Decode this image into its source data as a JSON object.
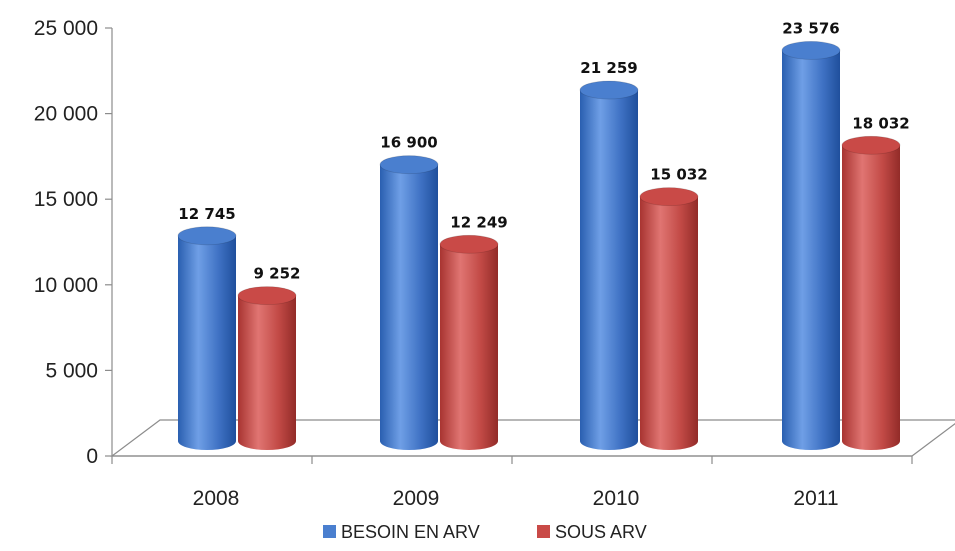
{
  "chart_data": {
    "type": "bar",
    "categories": [
      "2008",
      "2009",
      "2010",
      "2011"
    ],
    "series": [
      {
        "name": "BESOIN EN ARV",
        "values": [
          12745,
          16900,
          21259,
          23576
        ],
        "labels": [
          "12 745",
          "16 900",
          "21 259",
          "23 576"
        ],
        "color": "#4a7fcf"
      },
      {
        "name": "SOUS ARV",
        "values": [
          9252,
          12249,
          15032,
          18032
        ],
        "labels": [
          "9 252",
          "12 249",
          "15 032",
          "18 032"
        ],
        "color": "#c94a47"
      }
    ],
    "y_ticks": [
      0,
      5000,
      10000,
      15000,
      20000,
      25000
    ],
    "y_tick_labels": [
      "0",
      "5 000",
      "10 000",
      "15 000",
      "20 000",
      "25 000"
    ],
    "ylim": [
      0,
      25000
    ],
    "legend_position": "bottom",
    "grid": false,
    "style": "3d-cylinder"
  }
}
